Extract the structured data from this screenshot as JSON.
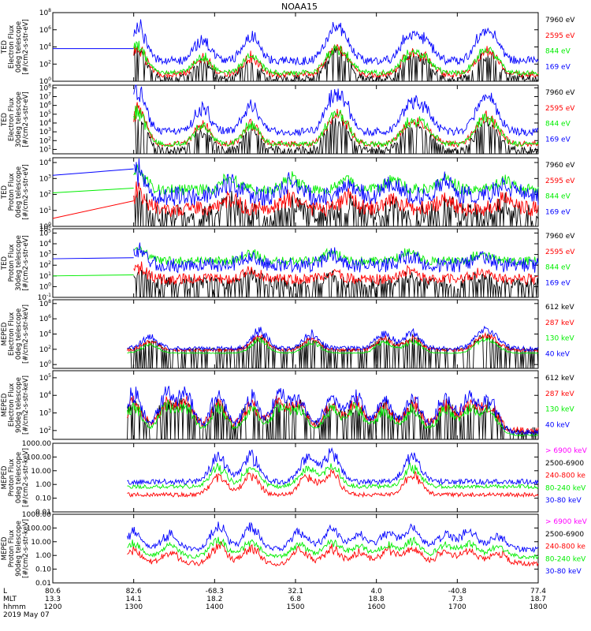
{
  "title": "NOAA15",
  "colors": {
    "black": "#000000",
    "red": "#ff0000",
    "green": "#00ee00",
    "blue": "#0000ff",
    "magenta": "#ff00ff"
  },
  "xaxis": {
    "row_labels": [
      "L",
      "MLT",
      "hhmm"
    ],
    "ticks": [
      {
        "L": "80.6",
        "MLT": "13.3",
        "hhmm": "1200"
      },
      {
        "L": "82.6",
        "MLT": "14.1",
        "hhmm": "1300"
      },
      {
        "L": "-68.3",
        "MLT": "18.2",
        "hhmm": "1400"
      },
      {
        "L": "32.1",
        "MLT": "6.8",
        "hhmm": "1500"
      },
      {
        "L": "4.0",
        "MLT": "18.8",
        "hhmm": "1600"
      },
      {
        "L": "-40.8",
        "MLT": "7.3",
        "hhmm": "1700"
      },
      {
        "L": "77.4",
        "MLT": "18.7",
        "hhmm": "1800"
      }
    ],
    "date": "2019 May 07",
    "range_hours": [
      12,
      18
    ]
  },
  "chart_data": [
    {
      "type": "line",
      "ylabel": [
        "TED",
        "Electron Flux",
        "0deg telescope",
        "[#/cm2-s-str-eV]"
      ],
      "yscale": "log",
      "yticks": [
        "10^0",
        "10^2",
        "10^4",
        "10^6",
        "10^8"
      ],
      "ylim_exp": [
        0,
        8
      ],
      "data_start_hour": 13.0,
      "series": [
        {
          "name": "7960 eV",
          "color": "black",
          "baseline_exp": 0.4,
          "spread": 0.35
        },
        {
          "name": "2595 eV",
          "color": "red",
          "baseline_exp": 0.8,
          "spread": 0.35
        },
        {
          "name": "844 eV",
          "color": "green",
          "baseline_exp": 1.0,
          "spread": 0.3
        },
        {
          "name": "169 eV",
          "color": "blue",
          "baseline_exp": 2.4,
          "spread": 0.5
        }
      ],
      "bursts": [
        [
          13.05,
          5.2
        ],
        [
          13.85,
          3.0
        ],
        [
          14.45,
          3.4
        ],
        [
          15.45,
          3.4
        ],
        [
          15.6,
          2.8
        ],
        [
          16.4,
          3.3
        ],
        [
          16.6,
          2.9
        ],
        [
          17.3,
          3.2
        ],
        [
          17.45,
          2.6
        ]
      ],
      "pre_data": {
        "color": "blue",
        "exp": 3.8
      }
    },
    {
      "type": "line",
      "ylabel": [
        "TED",
        "Electron Flux",
        "30deg telescope",
        "[#/cm2-s-str-eV]"
      ],
      "yscale": "log",
      "yticks": [
        "10^1",
        "10^2",
        "10^3",
        "10^4",
        "10^5",
        "10^6",
        "10^7",
        "10^8"
      ],
      "ylim_exp": [
        0.5,
        8.3
      ],
      "data_start_hour": 13.0,
      "series": [
        {
          "name": "7960 eV",
          "color": "black",
          "baseline_exp": 1.0,
          "spread": 0.35
        },
        {
          "name": "2595 eV",
          "color": "red",
          "baseline_exp": 1.6,
          "spread": 0.35
        },
        {
          "name": "844 eV",
          "color": "green",
          "baseline_exp": 1.6,
          "spread": 0.3
        },
        {
          "name": "169 eV",
          "color": "blue",
          "baseline_exp": 3.0,
          "spread": 0.45
        }
      ],
      "bursts": [
        [
          13.05,
          6.0
        ],
        [
          13.85,
          3.4
        ],
        [
          14.45,
          3.7
        ],
        [
          15.45,
          4.0
        ],
        [
          15.6,
          3.3
        ],
        [
          16.4,
          3.8
        ],
        [
          16.6,
          3.2
        ],
        [
          17.3,
          3.6
        ],
        [
          17.45,
          3.0
        ]
      ],
      "pre_data": null
    },
    {
      "type": "line",
      "ylabel": [
        "TED",
        "Proton Flux",
        "0deg telescope",
        "[#/cm2-s-str-eV]"
      ],
      "yscale": "log",
      "yticks": [
        "10^0",
        "10^1",
        "10^2",
        "10^3",
        "10^4"
      ],
      "ylim_exp": [
        0,
        4.3
      ],
      "data_start_hour": 13.0,
      "series": [
        {
          "name": "7960 eV",
          "color": "black",
          "baseline_exp": 0.8,
          "spread": 0.6
        },
        {
          "name": "2595 eV",
          "color": "red",
          "baseline_exp": 1.1,
          "spread": 0.5
        },
        {
          "name": "844 eV",
          "color": "green",
          "baseline_exp": 2.3,
          "spread": 0.35
        },
        {
          "name": "169 eV",
          "color": "blue",
          "baseline_exp": 1.9,
          "spread": 0.6
        }
      ],
      "bursts": [
        [
          13.05,
          1.8
        ],
        [
          14.2,
          1.2
        ],
        [
          14.95,
          1.2
        ],
        [
          15.65,
          1.1
        ],
        [
          16.2,
          1.0
        ],
        [
          16.85,
          1.1
        ],
        [
          17.6,
          1.0
        ]
      ],
      "pre_data": {
        "lines": [
          {
            "color": "blue",
            "from": 3.2,
            "to": 3.6
          },
          {
            "color": "green",
            "from": 2.1,
            "to": 2.4
          },
          {
            "color": "red",
            "from": 0.5,
            "to": 1.6
          }
        ]
      }
    },
    {
      "type": "line",
      "ylabel": [
        "TED",
        "Proton Flux",
        "30deg telescope",
        "[#/cm2-s-str-eV]"
      ],
      "yscale": "log",
      "yticks": [
        "10^-1",
        "10^0",
        "10^1",
        "10^2",
        "10^3",
        "10^4",
        "10^5",
        "10^6"
      ],
      "ylim_exp": [
        -1,
        5.4
      ],
      "data_start_hour": 13.0,
      "series": [
        {
          "name": "7960 eV",
          "color": "black",
          "baseline_exp": 0.3,
          "spread": 0.6
        },
        {
          "name": "2595 eV",
          "color": "red",
          "baseline_exp": 0.7,
          "spread": 0.5
        },
        {
          "name": "844 eV",
          "color": "green",
          "baseline_exp": 2.4,
          "spread": 0.4
        },
        {
          "name": "169 eV",
          "color": "blue",
          "baseline_exp": 2.0,
          "spread": 0.7
        }
      ],
      "bursts": [
        [
          13.05,
          1.8
        ],
        [
          14.45,
          1.3
        ],
        [
          15.45,
          1.2
        ],
        [
          16.4,
          1.2
        ],
        [
          17.3,
          1.1
        ]
      ],
      "pre_data": {
        "lines": [
          {
            "color": "blue",
            "from": 2.6,
            "to": 2.7
          },
          {
            "color": "green",
            "from": 1.0,
            "to": 1.1
          }
        ]
      }
    },
    {
      "type": "line",
      "ylabel": [
        "MEPED",
        "Electron Flux",
        "0deg telescope",
        "[#/cm2-s-str-keV]"
      ],
      "yscale": "log",
      "yticks": [
        "10^0",
        "10^2",
        "10^4",
        "10^6",
        "10^8"
      ],
      "ylim_exp": [
        -0.5,
        8.5
      ],
      "data_start_hour": 12.92,
      "series": [
        {
          "name": "612 keV",
          "color": "black",
          "baseline_exp": 2.0,
          "spread": 0.15
        },
        {
          "name": "287 keV",
          "color": "red",
          "baseline_exp": 1.9,
          "spread": 0.2
        },
        {
          "name": "130 keV",
          "color": "green",
          "baseline_exp": 1.5,
          "spread": 0.05
        },
        {
          "name": "40 keV",
          "color": "blue",
          "baseline_exp": 2.1,
          "spread": 0.3
        }
      ],
      "bursts": [
        [
          13.2,
          1.8
        ],
        [
          14.55,
          2.8
        ],
        [
          15.2,
          2.3
        ],
        [
          16.1,
          2.5
        ],
        [
          16.45,
          2.6
        ],
        [
          17.3,
          2.3
        ],
        [
          17.45,
          1.6
        ]
      ],
      "pre_data": null
    },
    {
      "type": "line",
      "ylabel": [
        "MEPED",
        "Electron Flux",
        "90deg telescope",
        "[#/cm2-s-str-keV]"
      ],
      "yscale": "log",
      "yticks": [
        "10^2",
        "10^3",
        "10^4",
        "10^5"
      ],
      "ylim_exp": [
        1.5,
        5.4
      ],
      "data_start_hour": 12.92,
      "series": [
        {
          "name": "612 keV",
          "color": "black",
          "baseline_exp": 2.0,
          "spread": 0.2
        },
        {
          "name": "287 keV",
          "color": "red",
          "baseline_exp": 2.0,
          "spread": 0.2
        },
        {
          "name": "130 keV",
          "color": "green",
          "baseline_exp": 1.75,
          "spread": 0.05
        },
        {
          "name": "40 keV",
          "color": "blue",
          "baseline_exp": 1.9,
          "spread": 0.15
        }
      ],
      "bursts": [
        [
          13.0,
          2.7
        ],
        [
          13.4,
          2.6
        ],
        [
          13.65,
          2.5
        ],
        [
          14.05,
          2.6
        ],
        [
          14.45,
          2.4
        ],
        [
          14.8,
          2.6
        ],
        [
          15.05,
          2.3
        ],
        [
          15.45,
          2.4
        ],
        [
          15.75,
          2.5
        ],
        [
          16.1,
          2.3
        ],
        [
          16.45,
          2.5
        ],
        [
          16.85,
          2.4
        ],
        [
          17.15,
          2.3
        ],
        [
          17.4,
          2.2
        ]
      ],
      "pre_data": null
    },
    {
      "type": "line",
      "ylabel": [
        "MEPED",
        "Proton Flux",
        "0deg telescope",
        "[#/cm2-s-str-keV]"
      ],
      "yscale": "log",
      "yticks": [
        "0.01",
        "0.10",
        "1.00",
        "10.00",
        "100.00",
        "1000.00"
      ],
      "ylim_exp": [
        -2,
        3
      ],
      "data_start_hour": 12.92,
      "series": [
        {
          "name": "> 6900 keV",
          "color": "magenta",
          "baseline_exp": -5,
          "spread": 0
        },
        {
          "name": "2500-6900",
          "color": "black",
          "baseline_exp": -5,
          "spread": 0
        },
        {
          "name": "240-800 ke",
          "color": "red",
          "baseline_exp": -0.75,
          "spread": 0.15
        },
        {
          "name": "80-240 keV",
          "color": "green",
          "baseline_exp": -0.15,
          "spread": 0.15
        },
        {
          "name": "30-80 keV",
          "color": "blue",
          "baseline_exp": 0.2,
          "spread": 0.2
        }
      ],
      "bursts": [
        [
          14.05,
          2.2
        ],
        [
          14.45,
          2.3
        ],
        [
          15.15,
          2.2
        ],
        [
          15.45,
          2.4
        ],
        [
          16.45,
          2.3
        ]
      ],
      "pre_data": null
    },
    {
      "type": "line",
      "ylabel": [
        "MEPED",
        "Proton Flux",
        "90deg telescope",
        "[#/cm2-s-str-keV]"
      ],
      "yscale": "log",
      "yticks": [
        "0.01",
        "0.10",
        "1.00",
        "10.00",
        "100.00",
        "1000.00"
      ],
      "ylim_exp": [
        -2,
        3
      ],
      "data_start_hour": 12.92,
      "series": [
        {
          "name": "> 6900 keV",
          "color": "magenta",
          "baseline_exp": -5,
          "spread": 0
        },
        {
          "name": "2500-6900",
          "color": "black",
          "baseline_exp": -5,
          "spread": 0
        },
        {
          "name": "240-800 ke",
          "color": "red",
          "baseline_exp": -0.6,
          "spread": 0.2
        },
        {
          "name": "80-240 keV",
          "color": "green",
          "baseline_exp": -0.1,
          "spread": 0.15
        },
        {
          "name": "30-80 keV",
          "color": "blue",
          "baseline_exp": 0.45,
          "spread": 0.2
        }
      ],
      "bursts": [
        [
          13.0,
          1.6
        ],
        [
          13.45,
          1.3
        ],
        [
          14.05,
          2.0
        ],
        [
          14.45,
          1.9
        ],
        [
          15.05,
          1.5
        ],
        [
          15.45,
          1.8
        ],
        [
          15.8,
          1.3
        ],
        [
          16.15,
          1.5
        ],
        [
          16.45,
          1.8
        ],
        [
          16.85,
          1.4
        ],
        [
          17.15,
          1.6
        ],
        [
          17.5,
          1.2
        ]
      ],
      "pre_data": null
    }
  ]
}
